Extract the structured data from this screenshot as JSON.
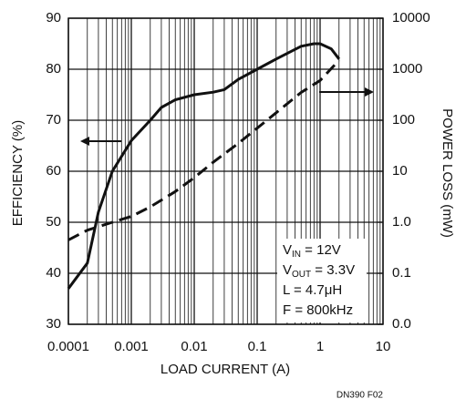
{
  "chart_data": {
    "type": "line",
    "xlabel": "LOAD CURRENT (A)",
    "ylabel": "EFFICIENCY (%)",
    "y2label": "POWER LOSS (mW)",
    "xscale": "log",
    "y2scale": "log",
    "grid": true,
    "xlim": [
      0.0001,
      10
    ],
    "xticks": [
      0.0001,
      0.001,
      0.01,
      0.1,
      1,
      10
    ],
    "ylim": [
      30,
      90
    ],
    "yticks": [
      30,
      40,
      50,
      60,
      70,
      80,
      90
    ],
    "y2lim": [
      0.01,
      10000
    ],
    "y2ticks": [
      {
        "value": 0.01,
        "label": "0.0"
      },
      0.1,
      {
        "value": 1,
        "label": "1.0"
      },
      10,
      100,
      1000,
      10000
    ],
    "series": [
      {
        "color": "#111111",
        "dash": false,
        "x": [
          0.0001,
          0.0002,
          0.0003,
          0.0005,
          0.001,
          0.002,
          0.003,
          0.005,
          0.01,
          0.02,
          0.03,
          0.05,
          0.1,
          0.2,
          0.5,
          0.8,
          1,
          1.5,
          2
        ],
        "values": [
          37,
          42,
          52,
          60,
          66,
          70,
          72.5,
          74,
          75,
          75.5,
          76,
          78,
          80,
          82,
          84.5,
          85,
          85,
          84,
          82
        ]
      },
      {
        "color": "#111111",
        "dash": true,
        "axis": "y2",
        "x": [
          0.0001,
          0.0002,
          0.0005,
          0.001,
          0.002,
          0.005,
          0.01,
          0.02,
          0.05,
          0.1,
          0.2,
          0.5,
          1,
          2
        ],
        "values": [
          0.45,
          0.7,
          1.0,
          1.3,
          2,
          4,
          7.5,
          15,
          35,
          70,
          140,
          350,
          600,
          1500
        ]
      }
    ],
    "annotations": [
      {
        "parts": [
          "V",
          "IN",
          " = 12V"
        ]
      },
      {
        "parts": [
          "V",
          "OUT",
          " = 3.3V"
        ]
      },
      {
        "parts": [
          "L = 4.7μH"
        ]
      },
      {
        "parts": [
          "F = 800kHz"
        ]
      }
    ],
    "footnote": "DN390 F02"
  }
}
